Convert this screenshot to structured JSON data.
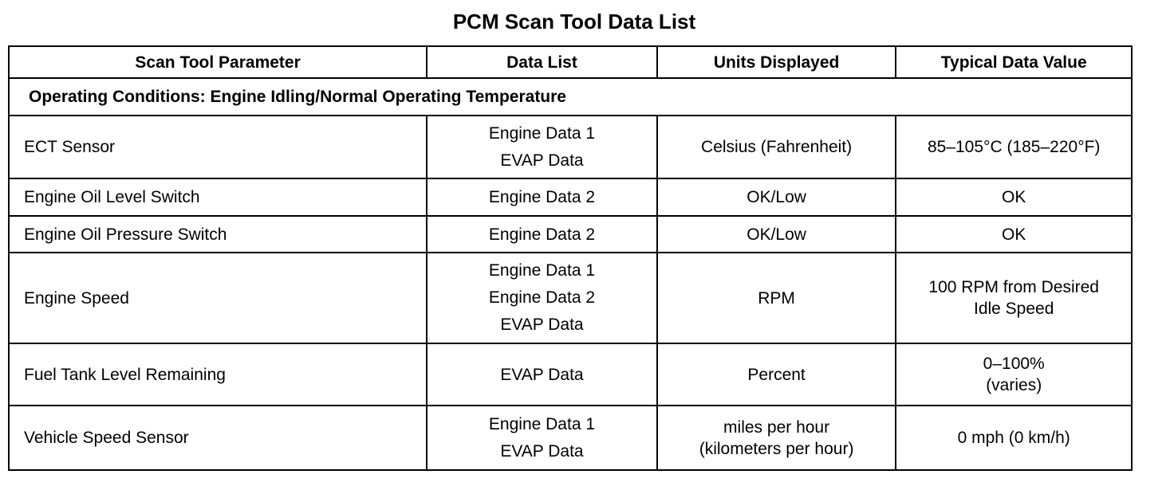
{
  "title": "PCM Scan Tool Data List",
  "columns": [
    "Scan Tool Parameter",
    "Data List",
    "Units Displayed",
    "Typical Data Value"
  ],
  "condition": "Operating Conditions: Engine Idling/Normal Operating Temperature",
  "rows": [
    {
      "parameter": "ECT Sensor",
      "data_list": [
        "Engine Data 1",
        "EVAP Data"
      ],
      "units": [
        "Celsius (Fahrenheit)"
      ],
      "typical": [
        "85–105°C (185–220°F)"
      ]
    },
    {
      "parameter": "Engine Oil Level Switch",
      "data_list": [
        "Engine Data 2"
      ],
      "units": [
        "OK/Low"
      ],
      "typical": [
        "OK"
      ]
    },
    {
      "parameter": "Engine Oil Pressure Switch",
      "data_list": [
        "Engine Data 2"
      ],
      "units": [
        "OK/Low"
      ],
      "typical": [
        "OK"
      ]
    },
    {
      "parameter": "Engine Speed",
      "data_list": [
        "Engine Data 1",
        "Engine Data 2",
        "EVAP Data"
      ],
      "units": [
        "RPM"
      ],
      "typical": [
        "100 RPM from Desired",
        "Idle Speed"
      ]
    },
    {
      "parameter": "Fuel Tank Level Remaining",
      "data_list": [
        "EVAP Data"
      ],
      "units": [
        "Percent"
      ],
      "typical": [
        "0–100%",
        "(varies)"
      ]
    },
    {
      "parameter": "Vehicle Speed Sensor",
      "data_list": [
        "Engine Data 1",
        "EVAP Data"
      ],
      "units": [
        "miles per hour",
        "(kilometers per hour)"
      ],
      "typical": [
        "0 mph (0 km/h)"
      ]
    }
  ]
}
